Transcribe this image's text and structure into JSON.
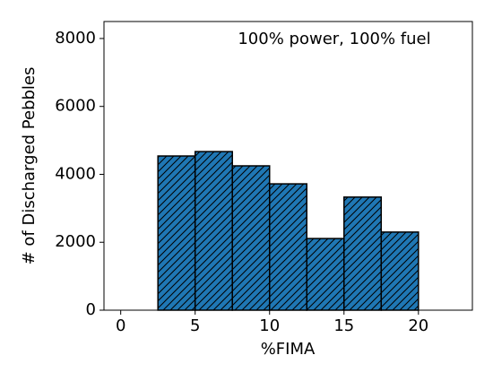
{
  "chart_data": {
    "type": "histogram",
    "annotation": "100% power, 100% fuel",
    "xlabel": "%FIMA",
    "ylabel": "# of Discharged Pebbles",
    "bins": [
      0,
      2.5,
      5,
      7.5,
      10,
      12.5,
      15,
      17.5,
      20,
      22.5
    ],
    "values": [
      0,
      4540,
      4670,
      4250,
      3720,
      2110,
      3330,
      2300,
      0
    ],
    "color": "#1f77b4",
    "edgecolor": "#000000",
    "hatch": "//",
    "xlim": [
      -1.125,
      23.625
    ],
    "xticks": [
      0,
      5,
      10,
      15,
      20
    ],
    "ylim": [
      0,
      8500
    ],
    "yticks": [
      0,
      2000,
      4000,
      6000,
      8000
    ]
  }
}
